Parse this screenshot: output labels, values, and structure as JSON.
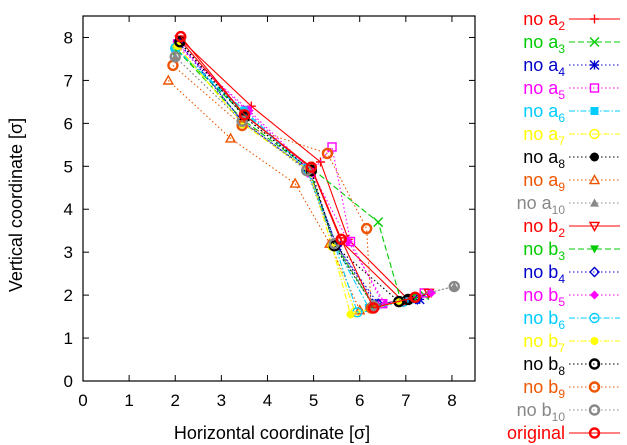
{
  "chart_data": {
    "type": "line",
    "xlabel": "Horizontal coordinate [σ]",
    "ylabel": "Vertical coordinate [σ]",
    "xlim": [
      0,
      8.5
    ],
    "ylim": [
      0,
      8.5
    ],
    "xticks": [
      0,
      1,
      2,
      3,
      4,
      5,
      6,
      7,
      8
    ],
    "yticks": [
      0,
      1,
      2,
      3,
      4,
      5,
      6,
      7,
      8
    ],
    "legend_position": "right",
    "series": [
      {
        "name_base": "no a",
        "name_sub": "2",
        "color": "#ff0000",
        "marker": "plus",
        "dash": "solid",
        "points": [
          [
            2.12,
            7.95
          ],
          [
            3.65,
            6.4
          ],
          [
            5.15,
            5.1
          ],
          [
            5.75,
            3.3
          ],
          [
            7.05,
            1.9
          ],
          [
            7.55,
            2.05
          ]
        ]
      },
      {
        "name_base": "no a",
        "name_sub": "3",
        "color": "#00cc00",
        "marker": "x",
        "dash": "dashed",
        "points": [
          [
            2.05,
            7.7
          ],
          [
            3.5,
            6.2
          ],
          [
            4.9,
            5.0
          ],
          [
            6.4,
            3.7
          ],
          [
            6.9,
            1.85
          ],
          [
            7.4,
            2.0
          ]
        ]
      },
      {
        "name_base": "no a",
        "name_sub": "4",
        "color": "#0000cc",
        "marker": "star",
        "dash": "dotted",
        "points": [
          [
            2.1,
            7.9
          ],
          [
            3.45,
            6.05
          ],
          [
            4.9,
            4.9
          ],
          [
            5.5,
            3.15
          ],
          [
            6.35,
            1.8
          ],
          [
            7.3,
            1.9
          ]
        ]
      },
      {
        "name_base": "no a",
        "name_sub": "5",
        "color": "#ff00ff",
        "marker": "square",
        "dash": "dotted",
        "points": [
          [
            2.05,
            7.85
          ],
          [
            3.55,
            6.3
          ],
          [
            4.95,
            4.85
          ],
          [
            5.4,
            5.45
          ],
          [
            5.8,
            3.25
          ],
          [
            6.5,
            1.8
          ],
          [
            7.4,
            2.05
          ]
        ]
      },
      {
        "name_base": "no a",
        "name_sub": "6",
        "color": "#00ccff",
        "marker": "filled-square",
        "dash": "dashdot",
        "points": [
          [
            2.0,
            7.75
          ],
          [
            3.5,
            6.3
          ],
          [
            4.85,
            4.95
          ],
          [
            5.45,
            3.2
          ],
          [
            6.2,
            1.7
          ],
          [
            7.1,
            1.9
          ]
        ]
      },
      {
        "name_base": "no a",
        "name_sub": "7",
        "color": "#ffff00",
        "marker": "circle",
        "dash": "dashdot",
        "points": [
          [
            2.05,
            7.8
          ],
          [
            3.45,
            6.0
          ],
          [
            4.9,
            4.9
          ],
          [
            5.4,
            3.15
          ],
          [
            5.9,
            1.6
          ],
          [
            6.9,
            1.85
          ]
        ]
      },
      {
        "name_base": "no a",
        "name_sub": "8",
        "color": "#000000",
        "marker": "filled-circle",
        "dash": "dotted",
        "points": [
          [
            2.1,
            7.9
          ],
          [
            3.5,
            6.15
          ],
          [
            4.95,
            4.9
          ],
          [
            5.45,
            3.15
          ],
          [
            6.3,
            1.75
          ],
          [
            7.05,
            1.9
          ]
        ]
      },
      {
        "name_base": "no a",
        "name_sub": "9",
        "color": "#ee5500",
        "marker": "triangle",
        "dash": "dotted",
        "points": [
          [
            1.85,
            7.0
          ],
          [
            3.2,
            5.65
          ],
          [
            4.6,
            4.6
          ],
          [
            5.35,
            3.2
          ],
          [
            6.0,
            1.65
          ],
          [
            6.9,
            1.85
          ]
        ]
      },
      {
        "name_base": "no a",
        "name_sub": "10",
        "color": "#888888",
        "marker": "filled-triangle",
        "dash": "dotted",
        "points": [
          [
            2.0,
            7.55
          ],
          [
            3.45,
            6.05
          ],
          [
            4.85,
            4.9
          ],
          [
            5.45,
            3.2
          ],
          [
            6.35,
            1.75
          ],
          [
            8.05,
            2.2
          ]
        ]
      },
      {
        "name_base": "no b",
        "name_sub": "2",
        "color": "#ff0000",
        "marker": "inv-triangle",
        "dash": "solid",
        "points": [
          [
            2.1,
            7.95
          ],
          [
            3.5,
            6.2
          ],
          [
            4.95,
            4.95
          ],
          [
            5.6,
            3.25
          ],
          [
            6.95,
            1.85
          ],
          [
            7.5,
            2.05
          ]
        ]
      },
      {
        "name_base": "no b",
        "name_sub": "3",
        "color": "#00cc00",
        "marker": "filled-inv-triangle",
        "dash": "dashed",
        "points": [
          [
            2.05,
            7.7
          ],
          [
            3.45,
            6.1
          ],
          [
            4.9,
            4.95
          ],
          [
            5.45,
            3.2
          ],
          [
            6.3,
            1.75
          ],
          [
            7.2,
            1.95
          ]
        ]
      },
      {
        "name_base": "no b",
        "name_sub": "4",
        "color": "#0000cc",
        "marker": "diamond",
        "dash": "dotted",
        "points": [
          [
            2.1,
            7.85
          ],
          [
            3.45,
            6.05
          ],
          [
            4.9,
            4.9
          ],
          [
            5.5,
            3.15
          ],
          [
            6.4,
            1.8
          ],
          [
            7.25,
            1.9
          ]
        ]
      },
      {
        "name_base": "no b",
        "name_sub": "5",
        "color": "#ff00ff",
        "marker": "filled-diamond",
        "dash": "dotted",
        "points": [
          [
            2.05,
            7.8
          ],
          [
            3.6,
            6.3
          ],
          [
            4.95,
            4.9
          ],
          [
            5.75,
            3.25
          ],
          [
            6.55,
            1.8
          ],
          [
            7.55,
            2.05
          ]
        ]
      },
      {
        "name_base": "no b",
        "name_sub": "6",
        "color": "#00ccff",
        "marker": "pentagon",
        "dash": "dashdot",
        "points": [
          [
            2.0,
            7.75
          ],
          [
            3.5,
            6.25
          ],
          [
            4.85,
            4.95
          ],
          [
            5.45,
            3.2
          ],
          [
            5.95,
            1.6
          ],
          [
            6.95,
            1.85
          ]
        ]
      },
      {
        "name_base": "no b",
        "name_sub": "7",
        "color": "#ffff00",
        "marker": "filled-pentagon",
        "dash": "dashdot",
        "points": [
          [
            2.05,
            7.8
          ],
          [
            3.45,
            6.0
          ],
          [
            4.9,
            4.9
          ],
          [
            5.4,
            3.15
          ],
          [
            5.8,
            1.55
          ],
          [
            6.85,
            1.85
          ]
        ]
      },
      {
        "name_base": "no b",
        "name_sub": "8",
        "color": "#000000",
        "marker": "ring",
        "dash": "dotted",
        "points": [
          [
            2.1,
            7.9
          ],
          [
            3.5,
            6.15
          ],
          [
            4.95,
            4.9
          ],
          [
            5.45,
            3.15
          ],
          [
            6.85,
            1.85
          ],
          [
            7.05,
            1.9
          ]
        ]
      },
      {
        "name_base": "no b",
        "name_sub": "9",
        "color": "#ee5500",
        "marker": "ring",
        "dash": "dotted",
        "points": [
          [
            1.95,
            7.35
          ],
          [
            3.45,
            5.95
          ],
          [
            5.3,
            5.3
          ],
          [
            6.15,
            3.55
          ],
          [
            6.25,
            1.7
          ],
          [
            7.2,
            1.95
          ]
        ]
      },
      {
        "name_base": "no b",
        "name_sub": "10",
        "color": "#888888",
        "marker": "ring",
        "dash": "dotted",
        "points": [
          [
            2.0,
            7.55
          ],
          [
            3.45,
            6.05
          ],
          [
            4.85,
            4.9
          ],
          [
            5.45,
            3.2
          ],
          [
            6.3,
            1.75
          ],
          [
            8.05,
            2.2
          ]
        ]
      },
      {
        "name_base": "original",
        "name_sub": "",
        "color": "#ff0000",
        "marker": "ring",
        "dash": "solid",
        "points": [
          [
            2.12,
            8.02
          ],
          [
            3.5,
            6.2
          ],
          [
            4.95,
            4.98
          ],
          [
            5.6,
            3.3
          ],
          [
            6.3,
            1.7
          ],
          [
            7.2,
            1.95
          ]
        ]
      }
    ]
  }
}
